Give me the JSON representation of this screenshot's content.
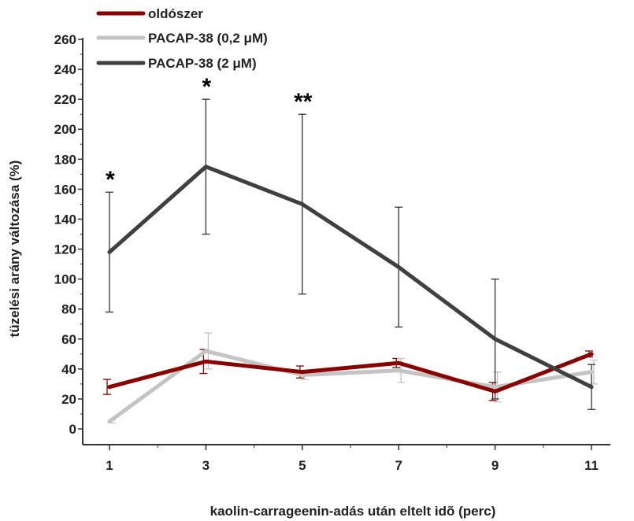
{
  "chart_data": {
    "type": "line",
    "title": "",
    "xlabel": "kaolin-carrageenin-adás után eltelt idõ (perc)",
    "ylabel": "tüzelési arány változása (%)",
    "x": [
      1,
      3,
      5,
      7,
      9,
      11
    ],
    "x_tick_labels": [
      "1",
      "3",
      "5",
      "7",
      "9",
      "11"
    ],
    "ylim": [
      0,
      260
    ],
    "y_ticks": [
      0,
      20,
      40,
      60,
      80,
      100,
      120,
      140,
      160,
      180,
      200,
      220,
      240,
      260
    ],
    "y_tick_labels": [
      "0",
      "20",
      "40",
      "60",
      "80",
      "100",
      "120",
      "140",
      "160",
      "180",
      "200",
      "220",
      "240",
      "260"
    ],
    "grid": false,
    "legend_position": "top-left",
    "series": [
      {
        "name": "oldószer",
        "color": "#8b0000",
        "values": [
          28,
          45,
          38,
          44,
          25,
          50
        ],
        "errors": [
          5,
          8,
          4,
          3,
          6,
          2
        ]
      },
      {
        "name": "PACAP-38 (0,2 μM)",
        "color": "#c4c4c4",
        "values": [
          5,
          52,
          36,
          39,
          28,
          38
        ],
        "errors": [
          1,
          12,
          3,
          8,
          10,
          8
        ]
      },
      {
        "name": "PACAP-38 (2 μM)",
        "color": "#404040",
        "values": [
          118,
          175,
          150,
          108,
          60,
          28
        ],
        "errors": [
          40,
          45,
          60,
          40,
          40,
          15
        ]
      }
    ],
    "annotations": [
      {
        "x": 1,
        "y": 158,
        "text": "*"
      },
      {
        "x": 3,
        "y": 220,
        "text": "*"
      },
      {
        "x": 5,
        "y": 210,
        "text": "**"
      }
    ]
  }
}
